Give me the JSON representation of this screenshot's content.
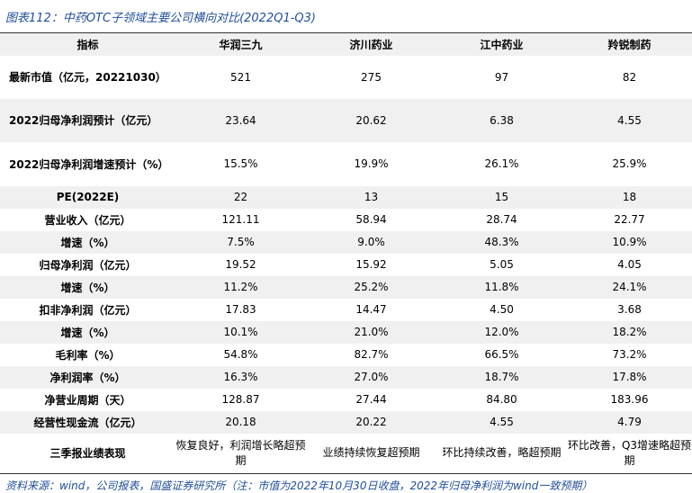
{
  "title": "图表112：中药OTC子领域主要公司横向对比(2022Q1-Q3)",
  "table": {
    "header": [
      "指标",
      "华润三九",
      "济川药业",
      "江中药业",
      "羚锐制药"
    ],
    "rows": [
      [
        "最新市值（亿元，20221030）",
        "521",
        "275",
        "97",
        "82"
      ],
      [
        "2022归母净利润预计（亿元）",
        "23.64",
        "20.62",
        "6.38",
        "4.55"
      ],
      [
        "2022归母净利润增速预计（%）",
        "15.5%",
        "19.9%",
        "26.1%",
        "25.9%"
      ],
      [
        "PE(2022E)",
        "22",
        "13",
        "15",
        "18"
      ],
      [
        "营业收入（亿元）",
        "121.11",
        "58.94",
        "28.74",
        "22.77"
      ],
      [
        "增速（%）",
        "7.5%",
        "9.0%",
        "48.3%",
        "10.9%"
      ],
      [
        "归母净利润（亿元）",
        "19.52",
        "15.92",
        "5.05",
        "4.05"
      ],
      [
        "增速（%）",
        "11.2%",
        "25.2%",
        "11.8%",
        "24.1%"
      ],
      [
        "扣非净利润（亿元）",
        "17.83",
        "14.47",
        "4.50",
        "3.68"
      ],
      [
        "增速（%）",
        "10.1%",
        "21.0%",
        "12.0%",
        "18.2%"
      ],
      [
        "毛利率（%）",
        "54.8%",
        "82.7%",
        "66.5%",
        "73.2%"
      ],
      [
        "净利润率（%）",
        "16.3%",
        "27.0%",
        "18.7%",
        "17.8%"
      ],
      [
        "净营业周期（天）",
        "128.87",
        "27.44",
        "84.80",
        "183.96"
      ],
      [
        "经营性现金流（亿元）",
        "20.18",
        "20.22",
        "4.55",
        "4.79"
      ],
      [
        "三季报业绩表现",
        "恢复良好，利润增长略超预期",
        "业绩持续恢复超预期",
        "环比持续改善，略超预期",
        "环比改善，Q3增速略超预期"
      ]
    ]
  },
  "source": "资料来源：wind，公司报表，国盛证券研究所（注：市值为2022年10月30日收盘，2022年归母净利润为wind一致预期）"
}
